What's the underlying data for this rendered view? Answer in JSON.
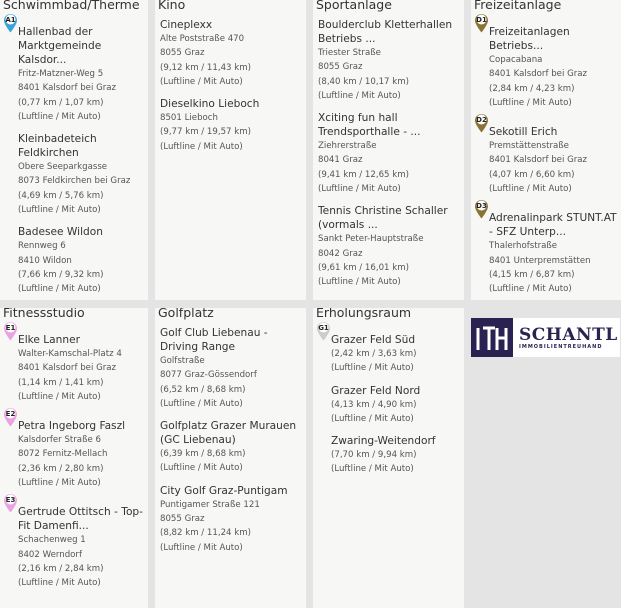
{
  "panels": [
    {
      "title": "Schwimmbad/Therme",
      "color": "#3ba3d8",
      "items": [
        {
          "marker": "A1",
          "name": "Hallenbad der Marktgemeinde Kalsdor...",
          "lines": [
            "Fritz-Matzner-Weg 5",
            "8401 Kalsdorf bei Graz",
            "(0,77 km / 1,07 km)",
            "(Luftline / Mit Auto)"
          ]
        },
        {
          "name": "Kleinbadeteich Feldkirchen",
          "lines": [
            "Obere Seeparkgasse",
            "8073 Feldkirchen bei Graz",
            "(4,69 km / 5,76 km)",
            "(Luftline / Mit Auto)"
          ]
        },
        {
          "name": "Badesee Wildon",
          "lines": [
            "Rennweg 6",
            "8410 Wildon",
            "(7,66 km / 9,32 km)",
            "(Luftline / Mit Auto)"
          ]
        }
      ]
    },
    {
      "title": "Kino",
      "items": [
        {
          "name": "Cineplexx",
          "lines": [
            "Alte Poststraße 470",
            "8055 Graz",
            "(9,12 km / 11,43 km)",
            "(Luftline / Mit Auto)"
          ]
        },
        {
          "name": "Dieselkino Lieboch",
          "lines": [
            "8501 Lieboch",
            "(9,77 km / 19,57 km)",
            "(Luftline / Mit Auto)"
          ]
        }
      ]
    },
    {
      "title": "Sportanlage",
      "items": [
        {
          "name": "Boulderclub Kletterhallen Betriebs ...",
          "lines": [
            "Triester Straße",
            "8055 Graz",
            "(8,40 km / 10,17 km)",
            "(Luftline / Mit Auto)"
          ]
        },
        {
          "name": "Xciting fun hall Trendsporthalle - ...",
          "lines": [
            "Ziehrerstraße",
            "8041 Graz",
            "(9,41 km / 12,65 km)",
            "(Luftline / Mit Auto)"
          ]
        },
        {
          "name": "Tennis Christine Schaller (vormals ...",
          "lines": [
            "Sankt Peter-Hauptstraße",
            "8042 Graz",
            "(9,61 km / 16,01 km)",
            "(Luftline / Mit Auto)"
          ]
        }
      ]
    },
    {
      "title": "Freizeitanlage",
      "color": "#8a7433",
      "items": [
        {
          "marker": "D1",
          "name": "Freizeitanlagen Betriebs...",
          "lines": [
            "Copacabana",
            "8401 Kalsdorf bei Graz",
            "(2,84 km / 4,23 km)",
            "(Luftline / Mit Auto)"
          ]
        },
        {
          "marker": "D2",
          "name": "Sekotill Erich",
          "lines": [
            "Premstättenstraße",
            "8401 Kalsdorf bei Graz",
            "(4,07 km / 6,60 km)",
            "(Luftline / Mit Auto)"
          ]
        },
        {
          "marker": "D3",
          "name": "Adrenalinpark STUNT.AT - SFZ Unterp...",
          "lines": [
            "Thalerhofstraße",
            "8401 Unterpremstätten",
            "(4,15 km / 6,87 km)",
            "(Luftline / Mit Auto)"
          ]
        }
      ]
    },
    {
      "title": "Fitnessstudio",
      "color": "#e9a3e3",
      "items": [
        {
          "marker": "E1",
          "name": "Elke Lanner",
          "lines": [
            "Walter-Kamschal-Platz 4",
            "8401 Kalsdorf bei Graz",
            "(1,14 km / 1,41 km)",
            "(Luftline / Mit Auto)"
          ]
        },
        {
          "marker": "E2",
          "name": "Petra Ingeborg Faszl",
          "lines": [
            "Kalsdorfer Straße 6",
            "8072 Fernitz-Mellach",
            "(2,36 km / 2,80 km)",
            "(Luftline / Mit Auto)"
          ]
        },
        {
          "marker": "E3",
          "name": "Gertrude Ottitsch - Top-Fit Damenfi...",
          "lines": [
            "Schachenweg 1",
            "8402 Werndorf",
            "(2,16 km / 2,84 km)",
            "(Luftline / Mit Auto)"
          ]
        }
      ]
    },
    {
      "title": "Golfplatz",
      "items": [
        {
          "name": "Golf Club Liebenau - Driving Range",
          "lines": [
            "Golfstraße",
            "8077 Graz-Gössendorf",
            "(6,52 km / 8,68 km)",
            "(Luftline / Mit Auto)"
          ]
        },
        {
          "name": "Golfplatz Grazer Murauen (GC Liebenau)",
          "lines": [
            "(6,39 km / 8,68 km)",
            "(Luftline / Mit Auto)"
          ]
        },
        {
          "name": "City Golf Graz-Puntigam",
          "lines": [
            "Puntigamer Straße 121",
            "8055 Graz",
            "(8,82 km / 11,24 km)",
            "(Luftline / Mit Auto)"
          ]
        }
      ]
    },
    {
      "title": "Erholungsraum",
      "color": "#cccccc",
      "items": [
        {
          "marker": "G1",
          "name": "Grazer Feld Süd",
          "lines": [
            "(2,42 km / 3,63 km)",
            "(Luftline / Mit Auto)"
          ]
        },
        {
          "name": "Grazer Feld Nord",
          "lines": [
            "(4,13 km / 4,90 km)",
            "(Luftline / Mit Auto)"
          ]
        },
        {
          "name": "Zwaring-Weitendorf",
          "lines": [
            "(7,70 km / 9,94 km)",
            "(Luftline / Mit Auto)"
          ]
        }
      ]
    }
  ],
  "logo": {
    "brand": "SCHANTL",
    "tagline": "IMMOBILIENTREUHAND",
    "mark": "ITH"
  }
}
